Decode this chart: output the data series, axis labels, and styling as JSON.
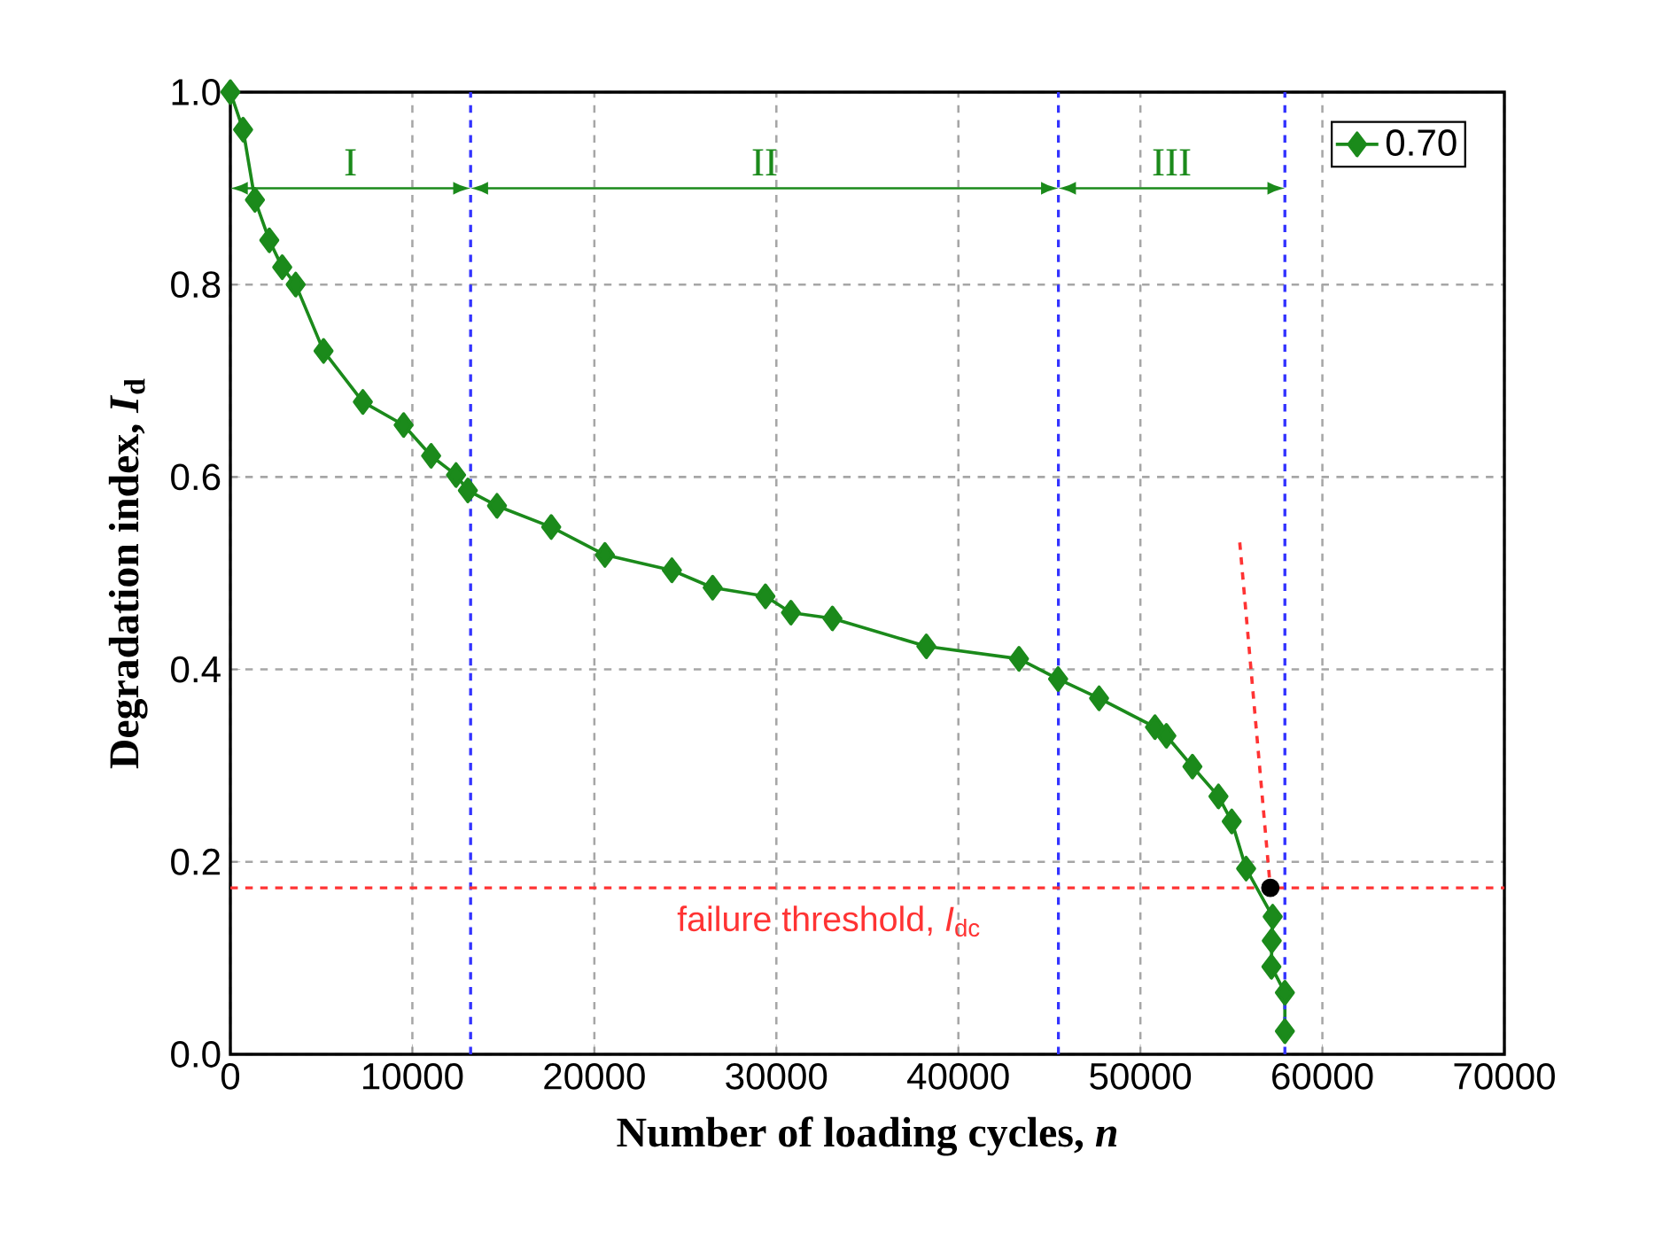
{
  "chart_data": {
    "type": "line",
    "xlabel": "Number of loading cycles, *n*",
    "ylabel": "Degradation index, *I*$_{d}$",
    "xlim": [
      0,
      70000
    ],
    "ylim": [
      0,
      1.0
    ],
    "xticks": [
      0,
      10000,
      20000,
      30000,
      40000,
      50000,
      60000,
      70000
    ],
    "yticks": [
      {
        "value": 0,
        "label": "0.0"
      },
      {
        "value": 0.2,
        "label": "0.2"
      },
      {
        "value": 0.4,
        "label": "0.4"
      },
      {
        "value": 0.6,
        "label": "0.6"
      },
      {
        "value": 0.8,
        "label": "0.8"
      },
      {
        "value": 1.0,
        "label": "1.0"
      }
    ],
    "grid": true,
    "legend": "top right",
    "series": [
      {
        "name": "0.70",
        "color": "#1b8a1b",
        "marker": "diamond",
        "line_style": "solid",
        "x": [
          0,
          700,
          1350,
          2140,
          2850,
          3590,
          5120,
          7280,
          9520,
          11030,
          12400,
          13050,
          14650,
          17630,
          20580,
          24260,
          26500,
          29400,
          30800,
          33080,
          38240,
          43330,
          45480,
          47730,
          50800,
          51430,
          52860,
          54290,
          55020,
          55810,
          57270,
          57220,
          57200,
          57940,
          57940
        ],
        "values": [
          1.0,
          0.961,
          0.888,
          0.846,
          0.818,
          0.8,
          0.731,
          0.678,
          0.654,
          0.622,
          0.602,
          0.586,
          0.57,
          0.548,
          0.519,
          0.503,
          0.485,
          0.476,
          0.459,
          0.453,
          0.424,
          0.411,
          0.39,
          0.37,
          0.34,
          0.331,
          0.299,
          0.268,
          0.242,
          0.193,
          0.143,
          0.118,
          0.091,
          0.064,
          0.024
        ]
      },
      {
        "type": "line",
        "color": "#ff3333",
        "marker": "none",
        "line_style": "dashed",
        "x": [
          55460,
          57140
        ],
        "values": [
          0.532,
          0.173
        ]
      },
      {
        "type": "scatter",
        "color": "#000000",
        "marker": "circle",
        "x": [
          57140
        ],
        "values": [
          0.173
        ]
      }
    ],
    "ref_lines": [
      {
        "axis": "x",
        "value": 13200,
        "color": "#3333ff",
        "line_style": "dashed"
      },
      {
        "axis": "x",
        "value": 45500,
        "color": "#3333ff",
        "line_style": "dashed"
      },
      {
        "axis": "x",
        "value": 57940,
        "color": "#3333ff",
        "line_style": "dashed"
      },
      {
        "axis": "y",
        "value": 0.173,
        "color": "#ff3333",
        "line_style": "dashed",
        "label": "failure threshold, *I*$_{dc}$"
      }
    ],
    "annotations": [
      "I",
      "II",
      "III"
    ]
  }
}
